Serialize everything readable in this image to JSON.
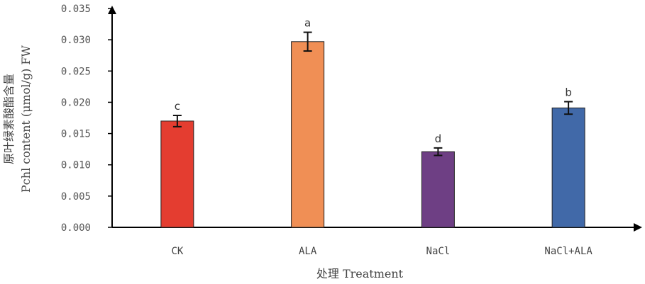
{
  "chart_data": {
    "type": "bar",
    "categories": [
      "CK",
      "ALA",
      "NaCl",
      "NaCl+ALA"
    ],
    "values": [
      0.017,
      0.0297,
      0.0121,
      0.0191
    ],
    "errors": [
      0.0009,
      0.0015,
      0.0006,
      0.001
    ],
    "significance": [
      "c",
      "a",
      "d",
      "b"
    ],
    "colors": [
      "#E43D30",
      "#F08F55",
      "#6E3F84",
      "#4169A8"
    ],
    "ylim": [
      0,
      0.035
    ],
    "yticks": [
      "0.000",
      "0.005",
      "0.010",
      "0.015",
      "0.020",
      "0.025",
      "0.030",
      "0.035"
    ],
    "ylabel_line1": "原叶绿素酸酯含量",
    "ylabel_line2": "Pchl content (μmol/g) FW",
    "xlabel": "处理   Treatment",
    "grid": false,
    "legend": "none"
  }
}
